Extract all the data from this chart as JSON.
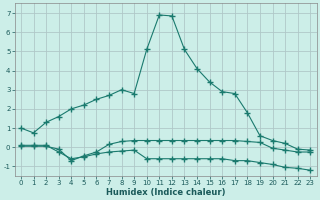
{
  "xlabel": "Humidex (Indice chaleur)",
  "bg_color": "#cceee8",
  "grid_color": "#b0c8c8",
  "line_color": "#1a7a6e",
  "xlim": [
    -0.5,
    23.5
  ],
  "ylim": [
    -1.5,
    7.5
  ],
  "xticks": [
    0,
    1,
    2,
    3,
    4,
    5,
    6,
    7,
    8,
    9,
    10,
    11,
    12,
    13,
    14,
    15,
    16,
    17,
    18,
    19,
    20,
    21,
    22,
    23
  ],
  "yticks": [
    -1,
    0,
    1,
    2,
    3,
    4,
    5,
    6,
    7
  ],
  "series1_x": [
    0,
    1,
    2,
    3,
    4,
    5,
    6,
    7,
    8,
    9,
    10,
    11,
    12,
    13,
    14,
    15,
    16,
    17,
    18,
    19,
    20,
    21,
    22,
    23
  ],
  "series1_y": [
    1.0,
    0.75,
    1.3,
    1.6,
    2.0,
    2.2,
    2.5,
    2.7,
    3.0,
    2.8,
    5.1,
    6.9,
    6.85,
    5.1,
    4.1,
    3.4,
    2.9,
    2.8,
    1.8,
    0.6,
    0.35,
    0.2,
    -0.1,
    -0.15
  ],
  "series2_x": [
    0,
    1,
    2,
    3,
    4,
    5,
    6,
    7,
    8,
    9,
    10,
    11,
    12,
    13,
    14,
    15,
    16,
    17,
    18,
    19,
    20,
    21,
    22,
    23
  ],
  "series2_y": [
    0.1,
    0.1,
    0.1,
    -0.25,
    -0.6,
    -0.5,
    -0.35,
    -0.25,
    -0.2,
    -0.15,
    -0.6,
    -0.6,
    -0.6,
    -0.6,
    -0.6,
    -0.6,
    -0.6,
    -0.7,
    -0.7,
    -0.8,
    -0.9,
    -1.05,
    -1.1,
    -1.2
  ],
  "series3_x": [
    0,
    1,
    2,
    3,
    4,
    5,
    6,
    7,
    8,
    9,
    10,
    11,
    12,
    13,
    14,
    15,
    16,
    17,
    18,
    19,
    20,
    21,
    22,
    23
  ],
  "series3_y": [
    0.05,
    0.05,
    0.05,
    -0.1,
    -0.7,
    -0.45,
    -0.25,
    0.15,
    0.3,
    0.35,
    0.35,
    0.35,
    0.35,
    0.35,
    0.35,
    0.35,
    0.35,
    0.35,
    0.3,
    0.25,
    -0.05,
    -0.15,
    -0.25,
    -0.25
  ]
}
